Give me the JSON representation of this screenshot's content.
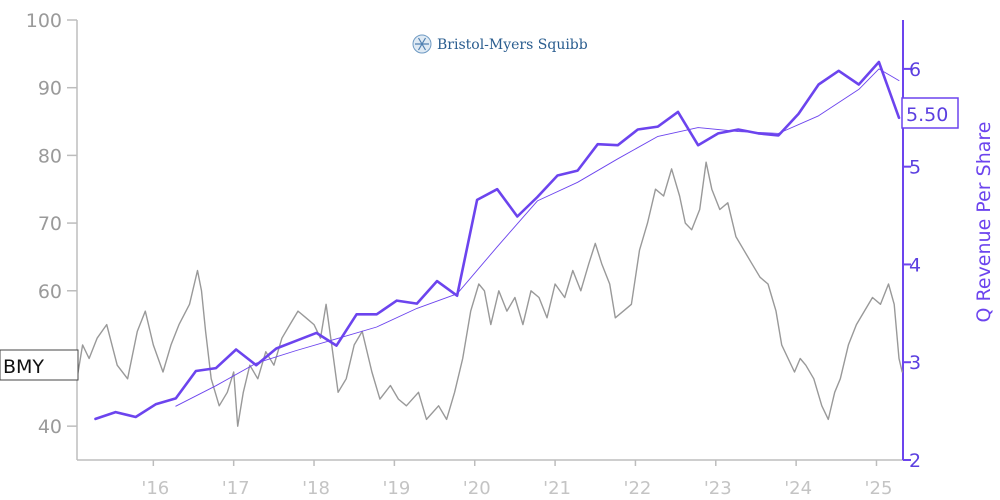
{
  "chart_data": {
    "type": "line",
    "logo_text": "Bristol-Myers Squibb",
    "ticker_label": "BMY",
    "ylabel_right": "Q Revenue Per Share",
    "last_value_label": "5.50",
    "x_tick_labels": [
      "'16",
      "'17",
      "'18",
      "'19",
      "'20",
      "'21",
      "'22",
      "'23",
      "'24",
      "'25"
    ],
    "x_tick_years": [
      2016,
      2017,
      2018,
      2019,
      2020,
      2021,
      2022,
      2023,
      2024,
      2025
    ],
    "xlim": [
      2015.05,
      2025.33
    ],
    "y_left": {
      "ticks": [
        40,
        50,
        60,
        70,
        80,
        90,
        100
      ],
      "tick_labels": [
        "40",
        "",
        "60",
        "70",
        "80",
        "90",
        "100"
      ],
      "ylim": [
        35,
        100
      ]
    },
    "y_right": {
      "ticks": [
        2,
        3,
        4,
        5,
        6
      ],
      "tick_labels": [
        "2",
        "3",
        "4",
        "5",
        "6"
      ],
      "ylim": [
        2,
        6.5
      ]
    },
    "colors": {
      "price": "#999999",
      "revenue": "#6c44ee",
      "revenue_avg": "#6c44ee",
      "axis_left": "#bdbdbd",
      "axis_right": "#6c44ee"
    },
    "series": [
      {
        "name": "",
        "axis": "left",
        "values": [
          [
            2015.05,
            47
          ],
          [
            2015.12,
            52
          ],
          [
            2015.2,
            50
          ],
          [
            2015.3,
            53
          ],
          [
            2015.42,
            55
          ],
          [
            2015.55,
            49
          ],
          [
            2015.68,
            47
          ],
          [
            2015.8,
            54
          ],
          [
            2015.9,
            57
          ],
          [
            2016.0,
            52
          ],
          [
            2016.12,
            48
          ],
          [
            2016.22,
            52
          ],
          [
            2016.32,
            55
          ],
          [
            2016.45,
            58
          ],
          [
            2016.55,
            63
          ],
          [
            2016.6,
            60
          ],
          [
            2016.65,
            54
          ],
          [
            2016.72,
            47
          ],
          [
            2016.82,
            43
          ],
          [
            2016.92,
            45
          ],
          [
            2017.0,
            48
          ],
          [
            2017.05,
            40
          ],
          [
            2017.12,
            45
          ],
          [
            2017.2,
            49
          ],
          [
            2017.3,
            47
          ],
          [
            2017.4,
            51
          ],
          [
            2017.5,
            49
          ],
          [
            2017.6,
            53
          ],
          [
            2017.7,
            55
          ],
          [
            2017.8,
            57
          ],
          [
            2017.9,
            56
          ],
          [
            2018.0,
            55
          ],
          [
            2018.08,
            53
          ],
          [
            2018.15,
            58
          ],
          [
            2018.22,
            52
          ],
          [
            2018.3,
            45
          ],
          [
            2018.4,
            47
          ],
          [
            2018.5,
            52
          ],
          [
            2018.6,
            54
          ],
          [
            2018.72,
            48
          ],
          [
            2018.82,
            44
          ],
          [
            2018.95,
            46
          ],
          [
            2019.05,
            44
          ],
          [
            2019.15,
            43
          ],
          [
            2019.3,
            45
          ],
          [
            2019.4,
            41
          ],
          [
            2019.55,
            43
          ],
          [
            2019.65,
            41
          ],
          [
            2019.75,
            45
          ],
          [
            2019.85,
            50
          ],
          [
            2019.95,
            57
          ],
          [
            2020.05,
            61
          ],
          [
            2020.12,
            60
          ],
          [
            2020.2,
            55
          ],
          [
            2020.3,
            60
          ],
          [
            2020.4,
            57
          ],
          [
            2020.5,
            59
          ],
          [
            2020.6,
            55
          ],
          [
            2020.7,
            60
          ],
          [
            2020.8,
            59
          ],
          [
            2020.9,
            56
          ],
          [
            2021.0,
            61
          ],
          [
            2021.12,
            59
          ],
          [
            2021.22,
            63
          ],
          [
            2021.32,
            60
          ],
          [
            2021.42,
            64
          ],
          [
            2021.5,
            67
          ],
          [
            2021.58,
            64
          ],
          [
            2021.68,
            61
          ],
          [
            2021.75,
            56
          ],
          [
            2021.85,
            57
          ],
          [
            2021.95,
            58
          ],
          [
            2022.05,
            66
          ],
          [
            2022.15,
            70
          ],
          [
            2022.25,
            75
          ],
          [
            2022.35,
            74
          ],
          [
            2022.45,
            78
          ],
          [
            2022.55,
            74
          ],
          [
            2022.62,
            70
          ],
          [
            2022.7,
            69
          ],
          [
            2022.8,
            72
          ],
          [
            2022.88,
            79
          ],
          [
            2022.95,
            75
          ],
          [
            2023.05,
            72
          ],
          [
            2023.15,
            73
          ],
          [
            2023.25,
            68
          ],
          [
            2023.35,
            66
          ],
          [
            2023.45,
            64
          ],
          [
            2023.55,
            62
          ],
          [
            2023.65,
            61
          ],
          [
            2023.75,
            57
          ],
          [
            2023.82,
            52
          ],
          [
            2023.9,
            50
          ],
          [
            2023.98,
            48
          ],
          [
            2024.05,
            50
          ],
          [
            2024.12,
            49
          ],
          [
            2024.22,
            47
          ],
          [
            2024.32,
            43
          ],
          [
            2024.4,
            41
          ],
          [
            2024.48,
            45
          ],
          [
            2024.55,
            47
          ],
          [
            2024.65,
            52
          ],
          [
            2024.75,
            55
          ],
          [
            2024.85,
            57
          ],
          [
            2024.95,
            59
          ],
          [
            2025.05,
            58
          ],
          [
            2025.15,
            61
          ],
          [
            2025.22,
            58
          ],
          [
            2025.28,
            50
          ],
          [
            2025.32,
            48
          ]
        ]
      },
      {
        "name": "",
        "axis": "right",
        "values": [
          [
            2015.28,
            2.42
          ],
          [
            2015.53,
            2.49
          ],
          [
            2015.78,
            2.44
          ],
          [
            2016.03,
            2.57
          ],
          [
            2016.28,
            2.63
          ],
          [
            2016.53,
            2.91
          ],
          [
            2016.78,
            2.94
          ],
          [
            2017.03,
            3.13
          ],
          [
            2017.28,
            2.97
          ],
          [
            2017.53,
            3.14
          ],
          [
            2017.78,
            3.22
          ],
          [
            2018.03,
            3.3
          ],
          [
            2018.28,
            3.17
          ],
          [
            2018.53,
            3.49
          ],
          [
            2018.78,
            3.49
          ],
          [
            2019.03,
            3.63
          ],
          [
            2019.28,
            3.6
          ],
          [
            2019.53,
            3.83
          ],
          [
            2019.78,
            3.68
          ],
          [
            2020.03,
            4.66
          ],
          [
            2020.28,
            4.77
          ],
          [
            2020.53,
            4.49
          ],
          [
            2020.78,
            4.69
          ],
          [
            2021.03,
            4.91
          ],
          [
            2021.28,
            4.96
          ],
          [
            2021.53,
            5.23
          ],
          [
            2021.78,
            5.22
          ],
          [
            2022.03,
            5.38
          ],
          [
            2022.28,
            5.41
          ],
          [
            2022.53,
            5.56
          ],
          [
            2022.78,
            5.22
          ],
          [
            2023.03,
            5.34
          ],
          [
            2023.28,
            5.38
          ],
          [
            2023.53,
            5.34
          ],
          [
            2023.78,
            5.32
          ],
          [
            2024.03,
            5.54
          ],
          [
            2024.28,
            5.84
          ],
          [
            2024.53,
            5.98
          ],
          [
            2024.78,
            5.84
          ],
          [
            2025.03,
            6.07
          ],
          [
            2025.28,
            5.5
          ]
        ]
      },
      {
        "name": "",
        "axis": "right",
        "style": "thin",
        "values": [
          [
            2016.28,
            2.55
          ],
          [
            2016.78,
            2.76
          ],
          [
            2017.28,
            2.99
          ],
          [
            2017.78,
            3.12
          ],
          [
            2018.28,
            3.24
          ],
          [
            2018.78,
            3.36
          ],
          [
            2019.28,
            3.55
          ],
          [
            2019.78,
            3.7
          ],
          [
            2020.28,
            4.18
          ],
          [
            2020.78,
            4.65
          ],
          [
            2021.28,
            4.84
          ],
          [
            2021.78,
            5.08
          ],
          [
            2022.28,
            5.31
          ],
          [
            2022.78,
            5.4
          ],
          [
            2023.28,
            5.36
          ],
          [
            2023.78,
            5.34
          ],
          [
            2024.28,
            5.52
          ],
          [
            2024.78,
            5.79
          ],
          [
            2025.03,
            6.0
          ],
          [
            2025.28,
            5.88
          ]
        ]
      }
    ]
  }
}
